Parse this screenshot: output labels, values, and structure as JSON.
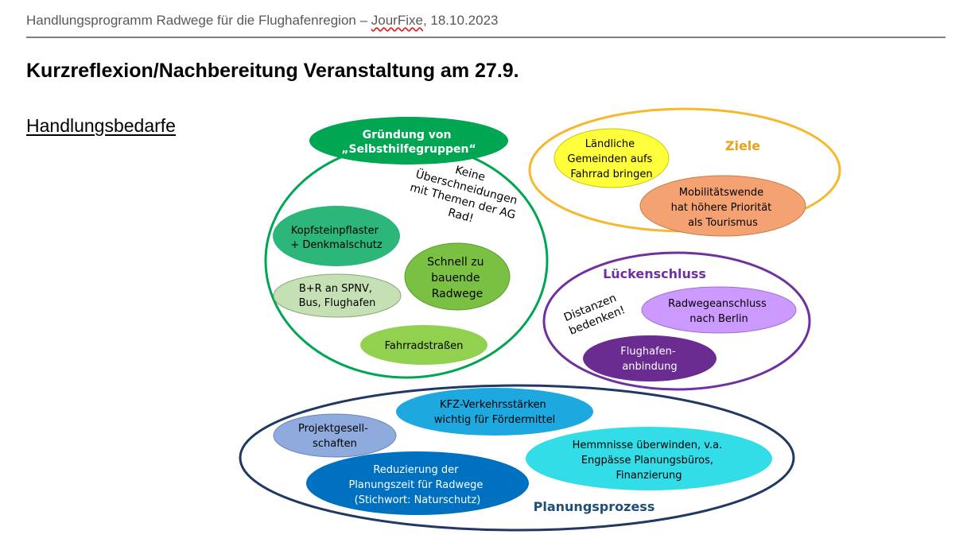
{
  "header": {
    "text_prefix": "Handlungsprogramm Radwege für die Flughafenregion – ",
    "text_squiggle": "JourFixe",
    "text_suffix": ", 18.10.2023"
  },
  "title": "Kurzreflexion/Nachbereitung Veranstaltung am 27.9.",
  "subtitle": "Handlungsbedarfe",
  "colors": {
    "green_group": "#00a651",
    "orange_group": "#f5b82e",
    "purple_group": "#7030a0",
    "navy_group": "#1f3864",
    "ziele_label": "#e8a317",
    "lucken_label": "#7030a0",
    "planung_label": "#1f4e79"
  },
  "diagram": {
    "groups": {
      "selbsthilfe": {
        "header_lines": [
          "Gründung von",
          "„Selbsthilfegruppen“"
        ],
        "note_lines": [
          "Keine",
          "Überschneidungen",
          "mit Themen der AG",
          "Rad!"
        ],
        "bubbles": {
          "kopfstein": [
            "Kopfsteinpflaster",
            "+ Denkmalschutz"
          ],
          "schnell": [
            "Schnell zu",
            "bauende",
            "Radwege"
          ],
          "br": [
            "B+R an SPNV,",
            "Bus, Flughafen"
          ],
          "fahrrad": [
            "Fahrradstraßen"
          ]
        }
      },
      "ziele": {
        "label": "Ziele",
        "bubbles": {
          "laendlich": [
            "Ländliche",
            "Gemeinden aufs",
            "Fahrrad bringen"
          ],
          "mobil": [
            "Mobilitätswende",
            "hat höhere Priorität",
            "als Tourismus"
          ]
        }
      },
      "lueckenschluss": {
        "label": "Lückenschluss",
        "note_lines": [
          "Distanzen",
          "bedenken!"
        ],
        "bubbles": {
          "berlin": [
            "Radwegeanschluss",
            "nach Berlin"
          ],
          "flughafen": [
            "Flughafen-",
            "anbindung"
          ]
        }
      },
      "planungsprozess": {
        "label": "Planungsprozess",
        "bubbles": {
          "kfz": [
            "KFZ-Verkehrsstärken",
            "wichtig für Fördermittel"
          ],
          "projekt": [
            "Projektgesell-",
            "schaften"
          ],
          "hemmnisse": [
            "Hemmnisse überwinden, v.a.",
            "Engpässe Planungsbüros,",
            "Finanzierung"
          ],
          "reduzierung": [
            "Reduzierung der",
            "Planungszeit für Radwege",
            "(Stichwort: Naturschutz)"
          ]
        }
      }
    }
  }
}
